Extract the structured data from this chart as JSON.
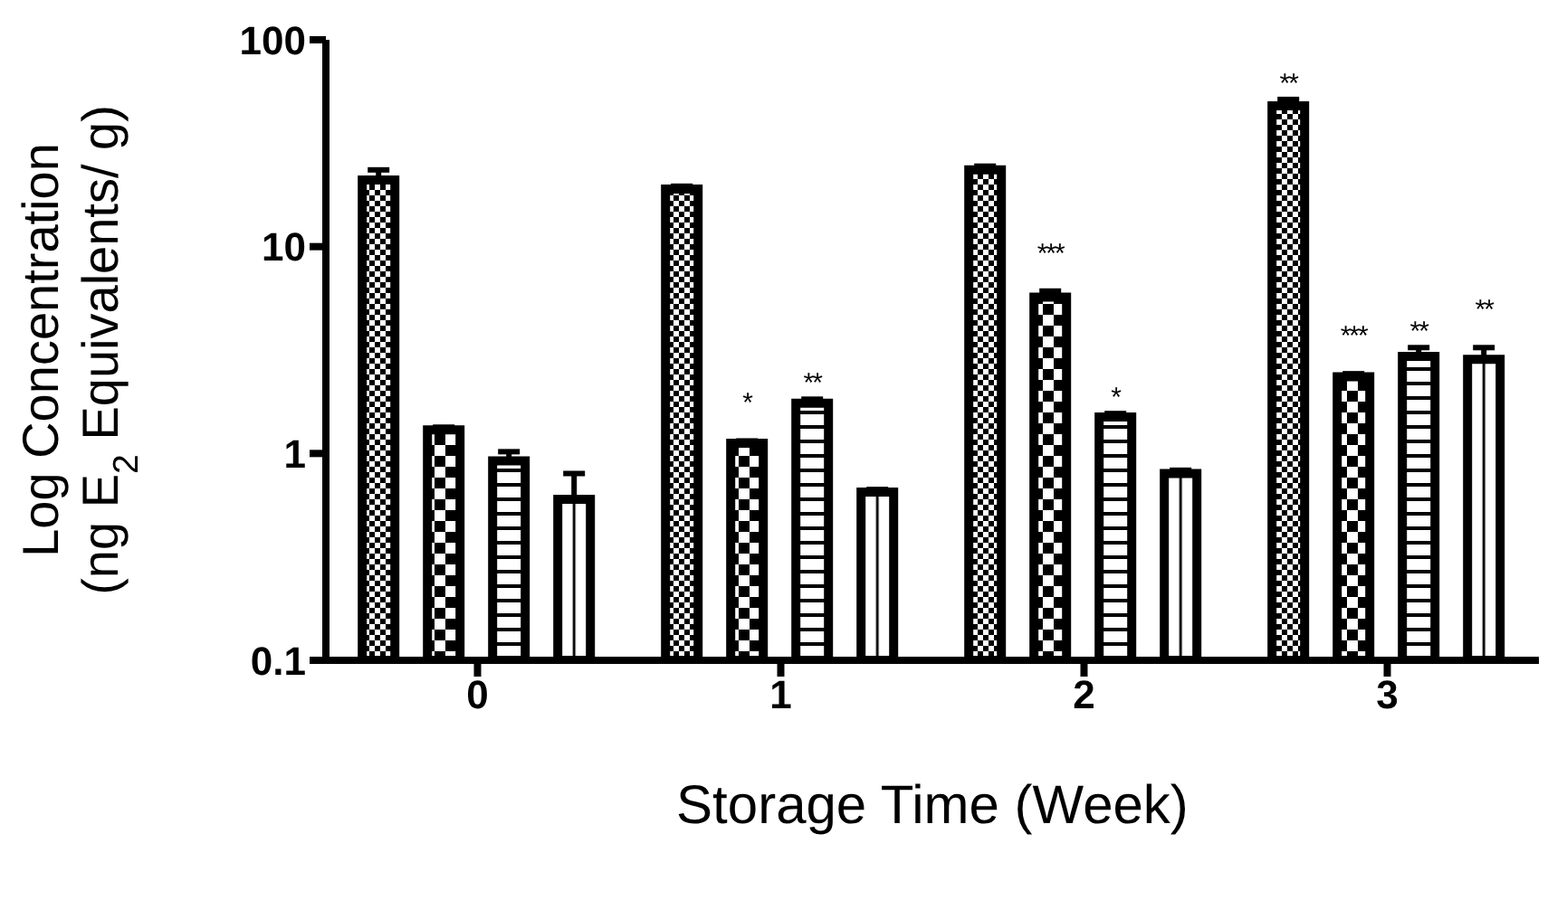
{
  "chart_data": {
    "type": "bar",
    "xlabel": "Storage Time (Week)",
    "ylabel": "Log Concentration\n(ng E$_{2}$ Equivalents/ g)",
    "categories": [
      "0",
      "1",
      "2",
      "3"
    ],
    "log": "y",
    "ylim": [
      0.1,
      100
    ],
    "yticks": [
      0.1,
      1,
      10,
      100
    ],
    "series": [
      {
        "color": "#000000",
        "values": [
          21,
          19,
          23.5,
          48
        ],
        "errors": [
          [
            21,
            23.5
          ],
          [
            19,
            19.6
          ],
          [
            23.5,
            24.5
          ],
          [
            48,
            51.5
          ]
        ],
        "value_labels": [
          null,
          null,
          null,
          "**"
        ]
      },
      {
        "color": "#000000",
        "values": [
          1.3,
          1.12,
          5.7,
          2.35
        ],
        "errors": [
          [
            1.3,
            1.34
          ],
          [
            1.12,
            1.15
          ],
          [
            5.7,
            6.1
          ],
          [
            2.35,
            2.43
          ]
        ],
        "value_labels": [
          null,
          "*",
          "***",
          "***"
        ]
      },
      {
        "color": "#000000",
        "values": [
          0.92,
          1.75,
          1.5,
          2.95
        ],
        "errors": [
          [
            0.92,
            1.02
          ],
          [
            1.75,
            1.83
          ],
          [
            1.5,
            1.56
          ],
          [
            2.95,
            3.25
          ]
        ],
        "value_labels": [
          null,
          "**",
          "*",
          "**"
        ]
      },
      {
        "color": "#000000",
        "values": [
          0.6,
          0.65,
          0.8,
          2.85
        ],
        "errors": [
          [
            0.6,
            0.8
          ],
          [
            0.65,
            0.67
          ],
          [
            0.8,
            0.83
          ],
          [
            2.85,
            3.25
          ]
        ],
        "value_labels": [
          null,
          null,
          null,
          "**"
        ]
      }
    ]
  }
}
